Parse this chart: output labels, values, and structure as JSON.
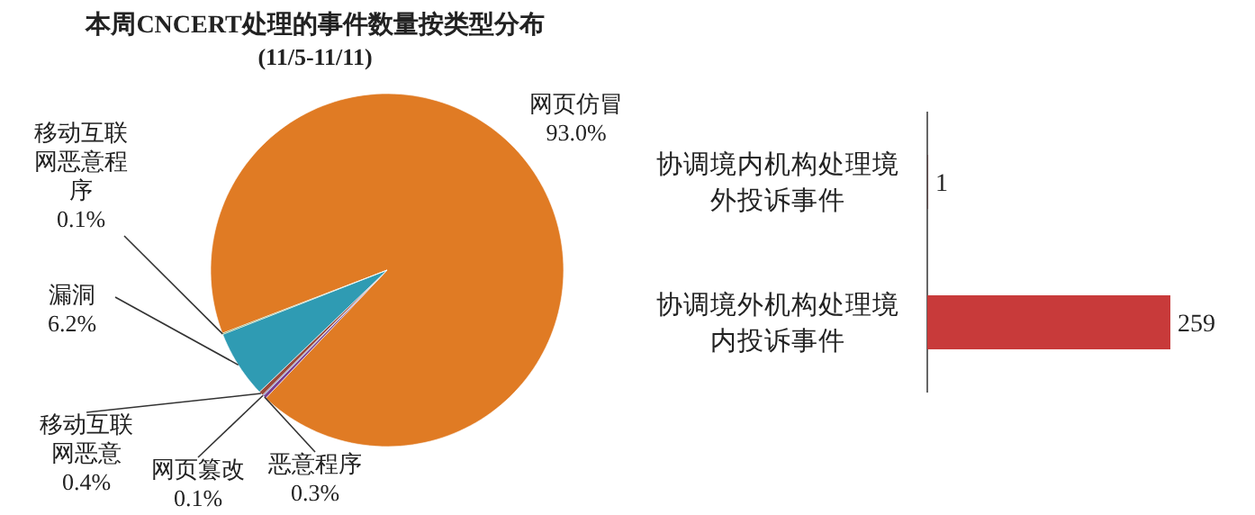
{
  "chart_data": [
    {
      "type": "pie",
      "title": "本周CNCERT处理的事件数量按类型分布",
      "subtitle": "(11/5-11/11)",
      "categories": [
        "网页仿冒",
        "恶意程序",
        "网页篡改",
        "移动互联网恶意",
        "漏洞",
        "移动互联网恶意程序"
      ],
      "values": [
        93.0,
        0.3,
        0.1,
        0.4,
        6.2,
        0.1
      ],
      "value_labels": [
        "93.0%",
        "0.3%",
        "0.1%",
        "0.4%",
        "6.2%",
        "0.1%"
      ],
      "colors": [
        "#e07b24",
        "#7a3f8f",
        "#4a5fb0",
        "#9a4a3a",
        "#2f9bb3",
        "#5a8a3a"
      ]
    },
    {
      "type": "bar",
      "orientation": "horizontal",
      "categories": [
        "协调境内机构处理境外投诉事件",
        "协调境外机构处理境内投诉事件"
      ],
      "values": [
        1,
        259
      ],
      "colors": [
        "#5a4646",
        "#c83a3a"
      ],
      "data_labels": true
    }
  ]
}
